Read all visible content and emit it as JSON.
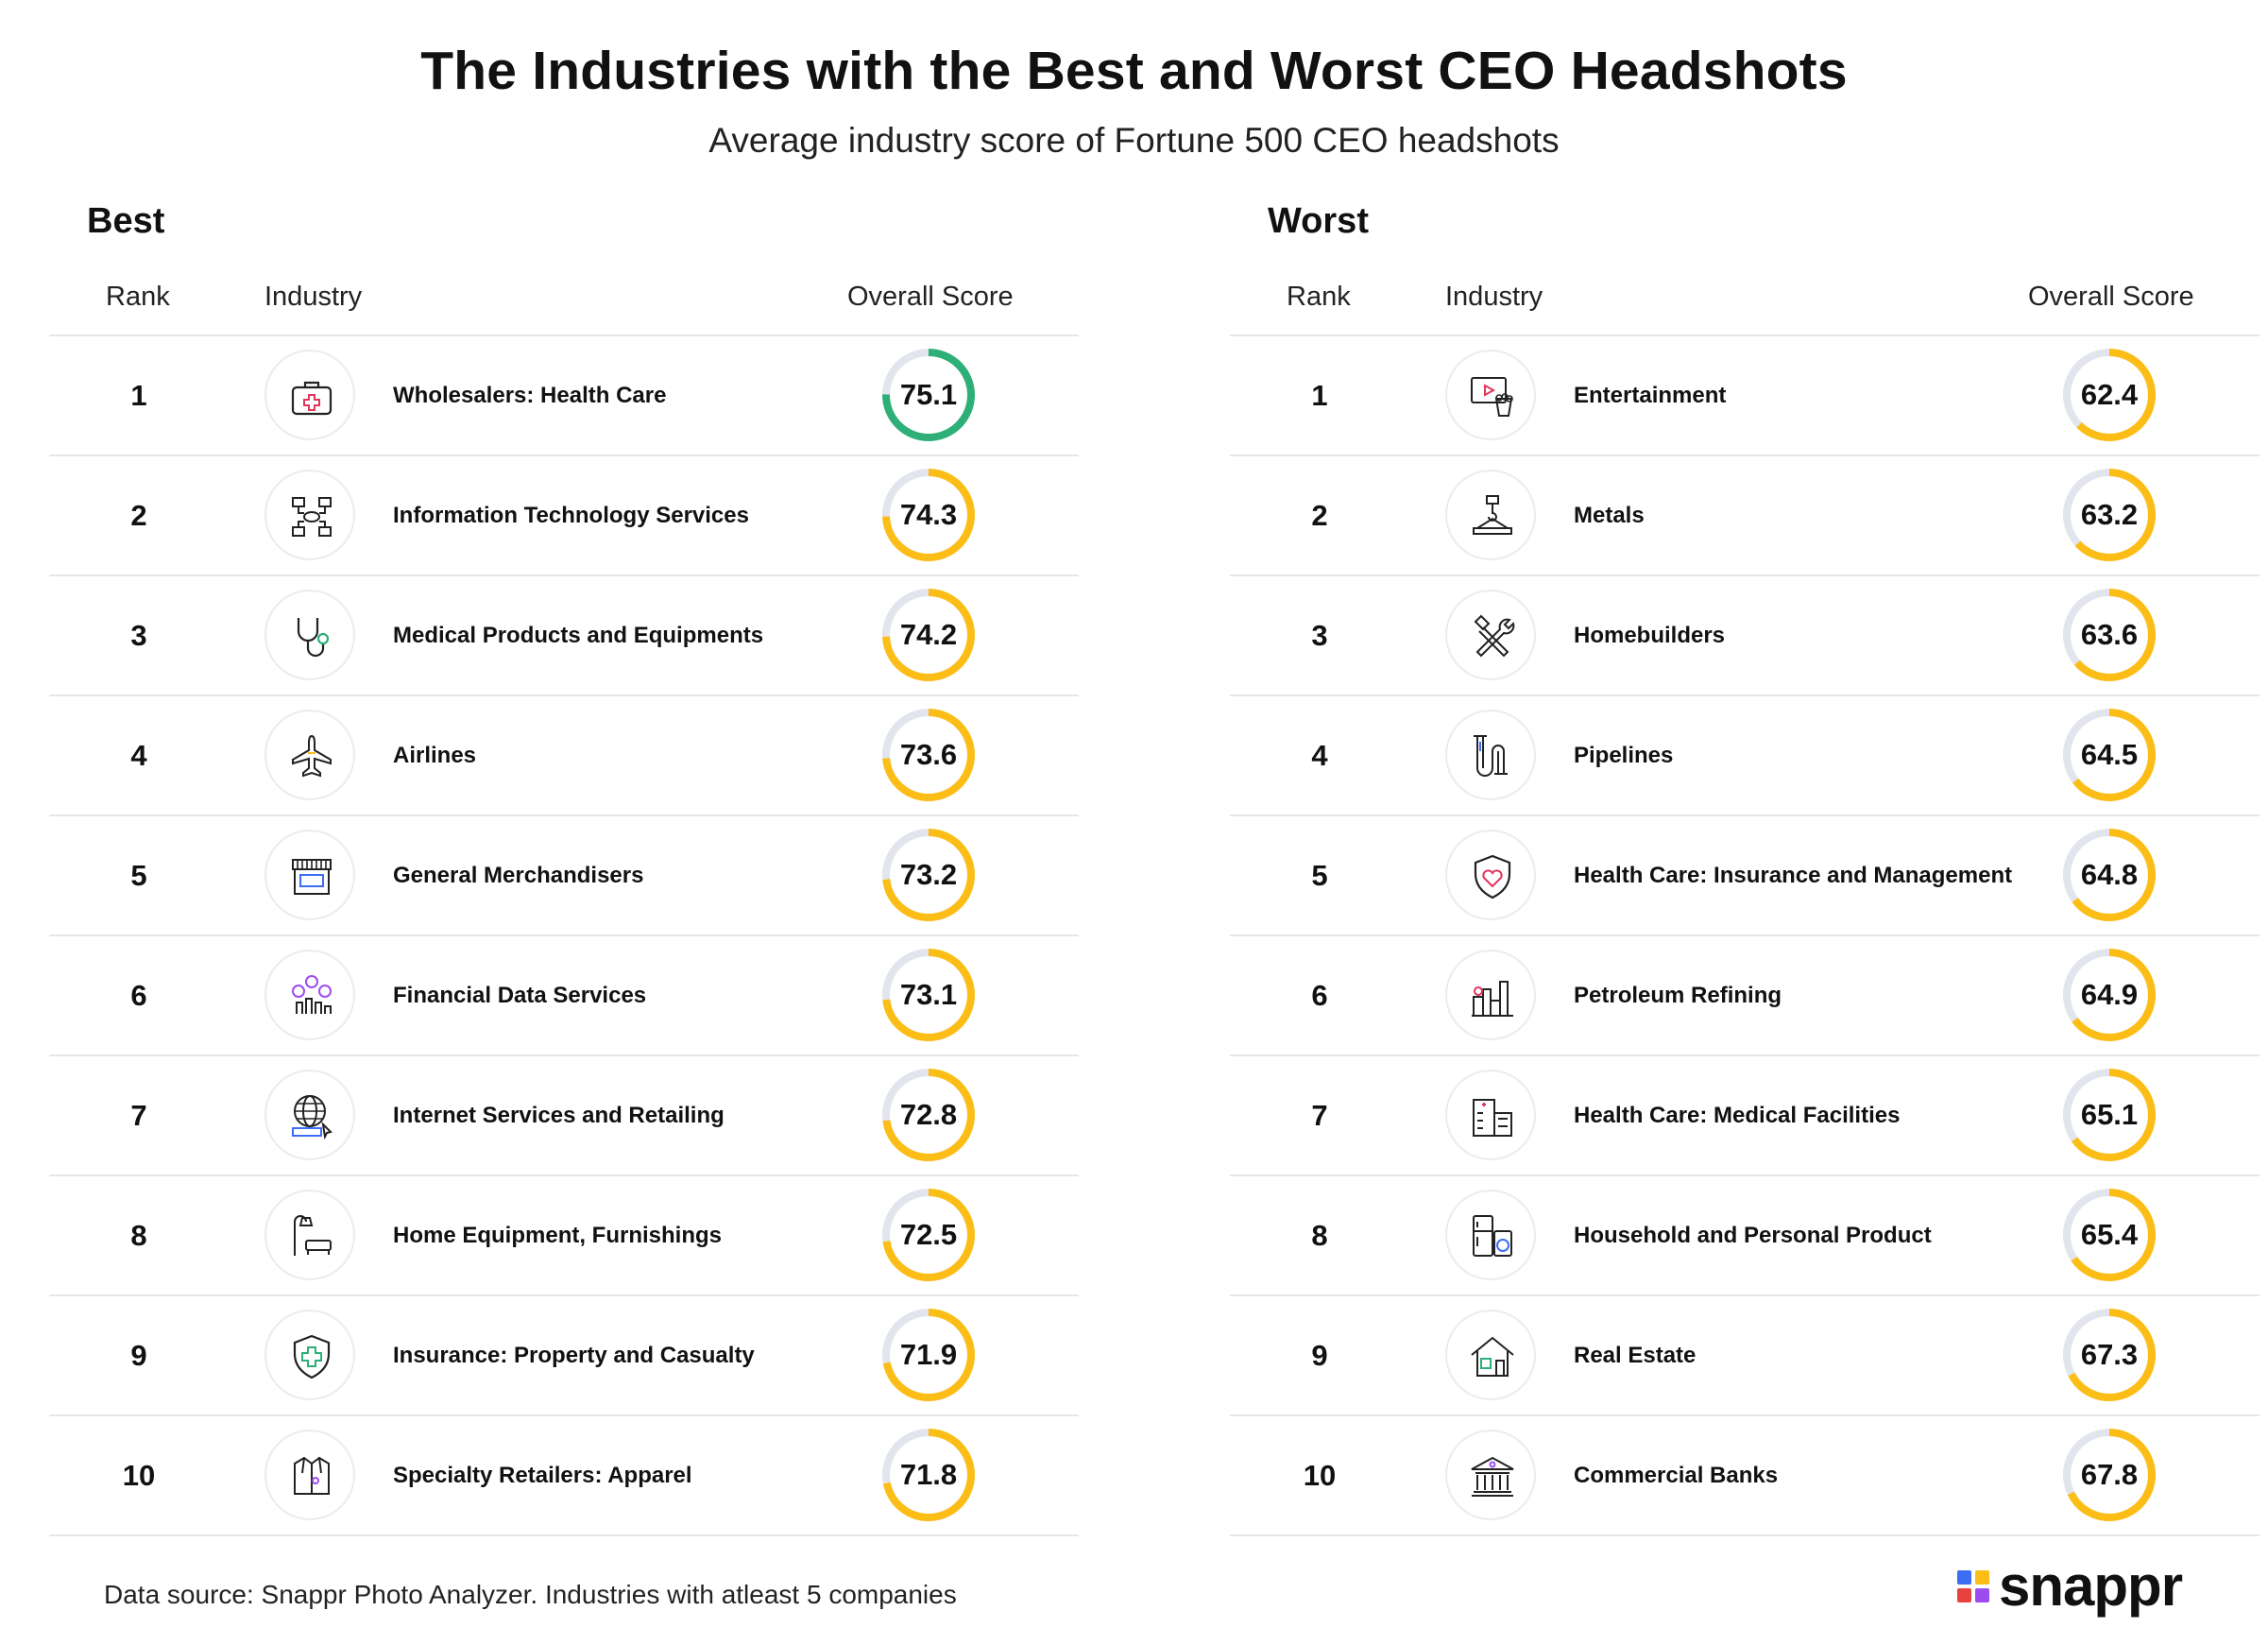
{
  "header": {
    "title": "The Industries with the Best and Worst CEO Headshots",
    "subtitle": "Average industry score of Fortune 500 CEO headshots"
  },
  "columns": {
    "rank": "Rank",
    "industry": "Industry",
    "score": "Overall Score"
  },
  "colors": {
    "track": "#e3e5ee",
    "best": "#2eaf78",
    "other": "#fbbd16"
  },
  "chart_data": [
    {
      "type": "table",
      "title": "Best",
      "columns": [
        "Rank",
        "Industry",
        "Overall Score"
      ],
      "score_scale": [
        0,
        100
      ],
      "rows": [
        {
          "rank": "1",
          "industry": "Wholesalers: Health Care",
          "score": 75.1,
          "icon": "first-aid-kit-icon",
          "highlight": true
        },
        {
          "rank": "2",
          "industry": "Information Technology Services",
          "score": 74.3,
          "icon": "network-icon"
        },
        {
          "rank": "3",
          "industry": "Medical Products and Equipments",
          "score": 74.2,
          "icon": "stethoscope-icon"
        },
        {
          "rank": "4",
          "industry": "Airlines",
          "score": 73.6,
          "icon": "airplane-icon"
        },
        {
          "rank": "5",
          "industry": "General Merchandisers",
          "score": 73.2,
          "icon": "store-icon"
        },
        {
          "rank": "6",
          "industry": "Financial Data Services",
          "score": 73.1,
          "icon": "finance-chart-icon"
        },
        {
          "rank": "7",
          "industry": "Internet Services and Retailing",
          "score": 72.8,
          "icon": "globe-www-icon"
        },
        {
          "rank": "8",
          "industry": "Home Equipment, Furnishings",
          "score": 72.5,
          "icon": "lamp-sofa-icon"
        },
        {
          "rank": "9",
          "industry": "Insurance: Property and Casualty",
          "score": 71.9,
          "icon": "shield-cross-icon"
        },
        {
          "rank": "10",
          "industry": "Specialty Retailers: Apparel",
          "score": 71.8,
          "icon": "jacket-icon"
        }
      ]
    },
    {
      "type": "table",
      "title": "Worst",
      "columns": [
        "Rank",
        "Industry",
        "Overall Score"
      ],
      "score_scale": [
        0,
        100
      ],
      "rows": [
        {
          "rank": "1",
          "industry": "Entertainment",
          "score": 62.4,
          "icon": "entertainment-icon"
        },
        {
          "rank": "2",
          "industry": "Metals",
          "score": 63.2,
          "icon": "crane-hook-icon"
        },
        {
          "rank": "3",
          "industry": "Homebuilders",
          "score": 63.6,
          "icon": "hammer-wrench-icon"
        },
        {
          "rank": "4",
          "industry": "Pipelines",
          "score": 64.5,
          "icon": "pipe-icon"
        },
        {
          "rank": "5",
          "industry": "Health Care: Insurance and Management",
          "score": 64.8,
          "icon": "shield-heart-icon"
        },
        {
          "rank": "6",
          "industry": "Petroleum Refining",
          "score": 64.9,
          "icon": "refinery-icon"
        },
        {
          "rank": "7",
          "industry": "Health Care: Medical Facilities",
          "score": 65.1,
          "icon": "hospital-icon"
        },
        {
          "rank": "8",
          "industry": "Household and Personal Product",
          "score": 65.4,
          "icon": "appliances-icon"
        },
        {
          "rank": "9",
          "industry": "Real Estate",
          "score": 67.3,
          "icon": "house-icon"
        },
        {
          "rank": "10",
          "industry": "Commercial Banks",
          "score": 67.8,
          "icon": "bank-icon"
        }
      ]
    }
  ],
  "footer": {
    "source": "Data source: Snappr Photo Analyzer. Industries with atleast 5 companies",
    "brand": "snappr"
  }
}
